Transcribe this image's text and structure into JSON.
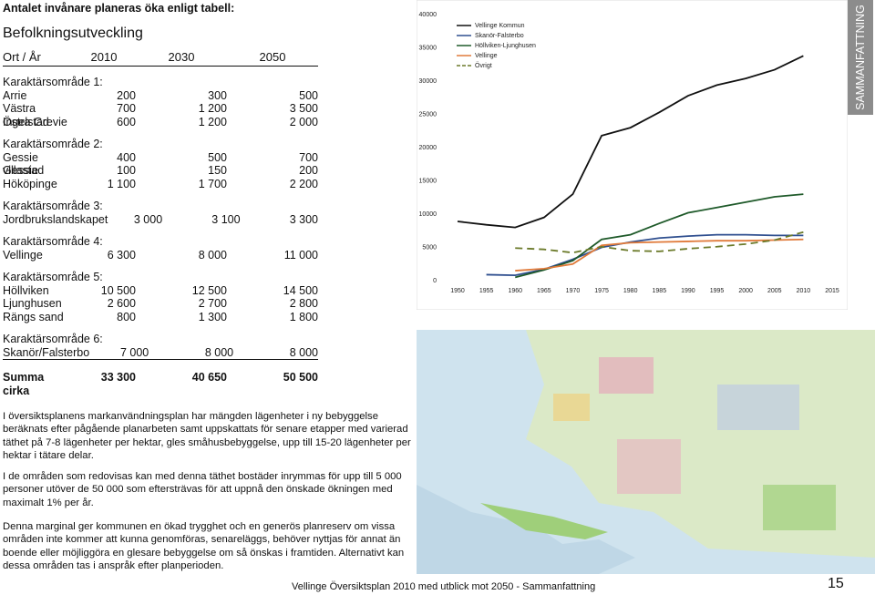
{
  "heading": "Antalet invånare planeras öka enligt tabell:",
  "table": {
    "title": "Befolkningsutveckling",
    "header": [
      "Ort / År",
      "2010",
      "2030",
      "2050"
    ],
    "groups": [
      {
        "title": "Karaktärsområde 1:",
        "rows": [
          [
            "Arrie",
            "200",
            "300",
            "500"
          ],
          [
            "Västra Ingelstad",
            "700",
            "1 200",
            "3 500"
          ],
          [
            "Östra Grevie",
            "600",
            "1 200",
            "2 000"
          ]
        ]
      },
      {
        "title": "Karaktärsområde 2:",
        "rows": [
          [
            "Gessie villastad",
            "400",
            "500",
            "700"
          ],
          [
            "Gessie",
            "100",
            "150",
            "200"
          ],
          [
            "Hököpinge",
            "1 100",
            "1 700",
            "2 200"
          ]
        ]
      },
      {
        "title": "Karaktärsområde 3:",
        "rows": [
          [
            "Jordbrukslandskapet",
            "3 000",
            "3 100",
            "3 300"
          ]
        ]
      },
      {
        "title": "Karaktärsområde 4:",
        "rows": [
          [
            "Vellinge",
            "6 300",
            "8 000",
            "11 000"
          ]
        ]
      },
      {
        "title": "Karaktärsområde 5:",
        "rows": [
          [
            "Höllviken",
            "10 500",
            "12 500",
            "14 500"
          ],
          [
            "Ljunghusen",
            "2 600",
            "2 700",
            "2 800"
          ],
          [
            "Rängs sand",
            "800",
            "1 300",
            "1 800"
          ]
        ]
      },
      {
        "title": "Karaktärsområde 6:",
        "rows": [
          [
            "Skanör/Falsterbo",
            "7 000",
            "8 000",
            "8 000"
          ]
        ]
      }
    ],
    "sum": [
      "Summa cirka",
      "33 300",
      "40 650",
      "50 500"
    ]
  },
  "paragraphs": [
    "I översiktsplanens markanvändningsplan har mängden lägenheter i ny bebyggelse beräknats efter pågående planarbeten samt uppskattats för senare etapper med varierad täthet på 7-8 lägenheter per hektar, gles småhusbebyggelse, upp till 15-20 lägenheter per hektar i tätare delar.",
    "I de områden som redovisas kan med denna täthet bostäder inrymmas för upp till 5 000 personer utöver de 50 000 som eftersträvas för att uppnå den önskade ökningen med maximalt 1% per år.",
    "Denna marginal ger kommunen en ökad trygghet och en generös planreserv om vissa områden inte kommer att kunna genomföras, senareläggs, behöver nyttjas för annat än boende eller möjliggöra en glesare bebyggelse om så önskas i framtiden. Alternativt kan dessa områden tas i anspråk efter planperioden."
  ],
  "sidebar": "SAMMANFATTNING",
  "footer": "Vellinge Översiktsplan 2010 med utblick mot 2050 - Sammanfattning",
  "page_number": "15",
  "chart_data": {
    "type": "line",
    "x": [
      1950,
      1955,
      1960,
      1965,
      1970,
      1975,
      1980,
      1985,
      1990,
      1995,
      2000,
      2005,
      2010
    ],
    "xlim": [
      1950,
      2015
    ],
    "xticks": [
      1950,
      1955,
      1960,
      1965,
      1970,
      1975,
      1980,
      1985,
      1990,
      1995,
      2000,
      2005,
      2010,
      2015
    ],
    "ylim": [
      0,
      40000
    ],
    "yticks": [
      0,
      5000,
      10000,
      15000,
      20000,
      25000,
      30000,
      35000,
      40000
    ],
    "legend": "top-left",
    "series": [
      {
        "name": "Vellinge Kommun",
        "color": "#111111",
        "dash": false,
        "values": [
          8900,
          8400,
          8000,
          9500,
          13000,
          21800,
          23000,
          25300,
          27800,
          29400,
          30400,
          31700,
          33800
        ]
      },
      {
        "name": "Skanör-Falsterbo",
        "color": "#2f4f8f",
        "dash": false,
        "values": [
          null,
          900,
          800,
          1700,
          3200,
          5000,
          5800,
          6400,
          6700,
          6900,
          6900,
          6800,
          6800
        ]
      },
      {
        "name": "Höllviken-Ljunghusen",
        "color": "#1f5a2a",
        "dash": false,
        "values": [
          null,
          null,
          500,
          1600,
          3000,
          6200,
          6900,
          8600,
          10200,
          11000,
          11800,
          12600,
          13000
        ]
      },
      {
        "name": "Vellinge",
        "color": "#e07a3a",
        "dash": false,
        "values": [
          null,
          null,
          1500,
          1800,
          2500,
          5300,
          5700,
          5800,
          5900,
          6000,
          6000,
          6100,
          6200
        ]
      },
      {
        "name": "Övrigt",
        "color": "#6b7a2a",
        "dash": true,
        "values": [
          null,
          null,
          4900,
          4700,
          4200,
          5100,
          4500,
          4400,
          4800,
          5100,
          5500,
          6100,
          7300
        ]
      }
    ]
  }
}
